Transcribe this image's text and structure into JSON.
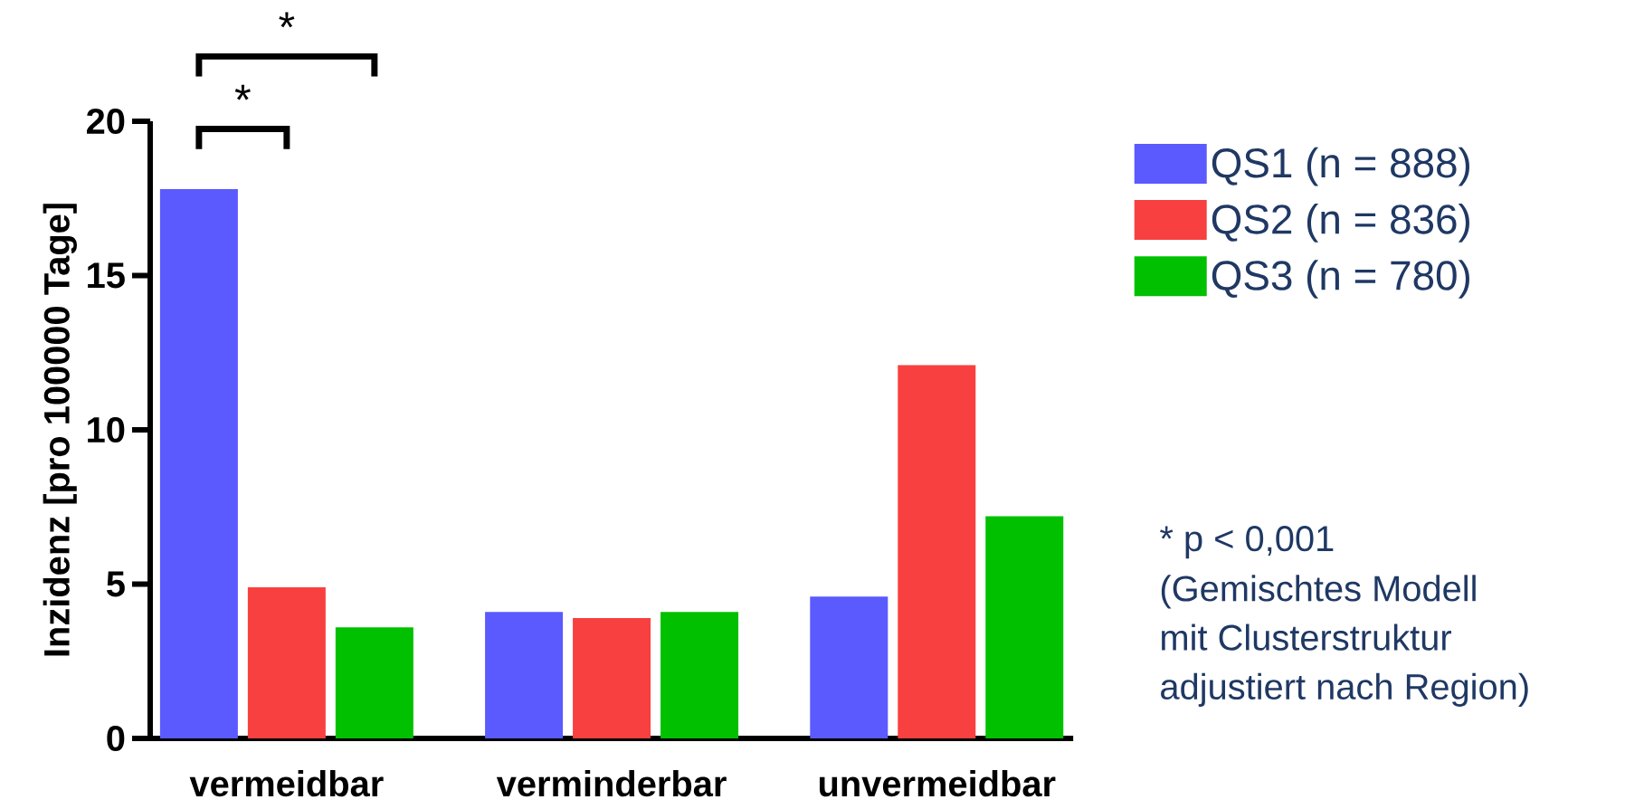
{
  "chart_data": {
    "type": "bar",
    "ylabel": "Inzidenz [pro 100000 Tage]",
    "categories": [
      "vermeidbar",
      "verminderbar",
      "unvermeidbar"
    ],
    "series": [
      {
        "name": "QS1 (n = 888)",
        "color": "#5a5aff",
        "values": [
          17.8,
          4.1,
          4.6
        ]
      },
      {
        "name": "QS2 (n = 836)",
        "color": "#f84040",
        "values": [
          4.9,
          3.9,
          12.1
        ]
      },
      {
        "name": "QS3 (n = 780)",
        "color": "#00c000",
        "values": [
          3.6,
          4.1,
          7.2
        ]
      }
    ],
    "ylim": [
      0,
      20
    ],
    "yticks": [
      0,
      5,
      10,
      15,
      20
    ],
    "grid": false,
    "legend": "right",
    "annotations": [
      "*",
      "*",
      "* p < 0,001",
      "(Gemischtes Modell",
      "mit Clusterstruktur",
      "adjustiert nach Region)"
    ]
  }
}
